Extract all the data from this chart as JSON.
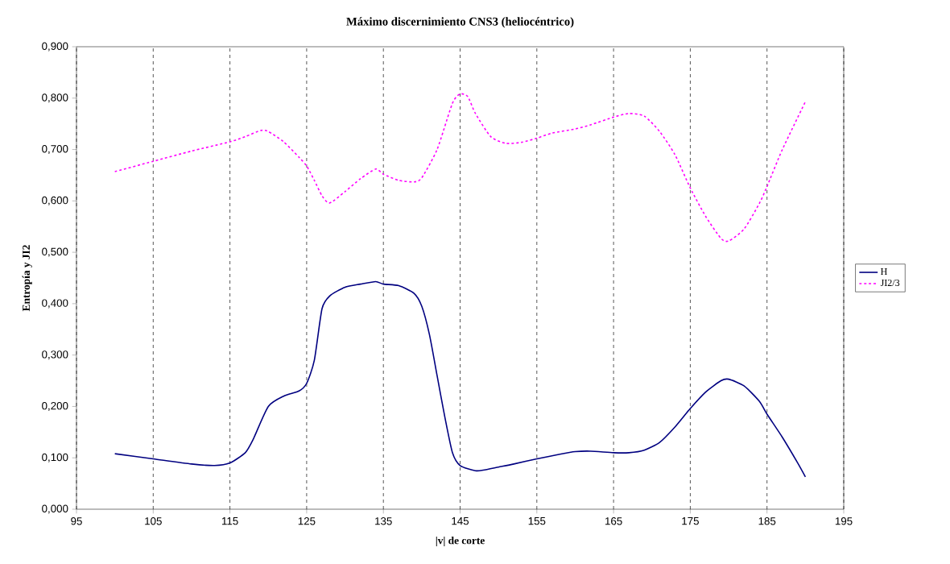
{
  "chart_data": {
    "type": "line",
    "title": "Máximo discernimiento CNS3 (heliocéntrico)",
    "xlabel": "|v| de corte",
    "ylabel": "Entropía y JI2",
    "xlim": [
      95,
      195
    ],
    "xticks": [
      95,
      105,
      115,
      125,
      135,
      145,
      155,
      165,
      175,
      185,
      195
    ],
    "ylim": [
      0,
      0.9
    ],
    "yticks": [
      {
        "value": 0,
        "label": "0,000"
      },
      {
        "value": 0.1,
        "label": "0,100"
      },
      {
        "value": 0.2,
        "label": "0,200"
      },
      {
        "value": 0.3,
        "label": "0,300"
      },
      {
        "value": 0.4,
        "label": "0,400"
      },
      {
        "value": 0.5,
        "label": "0,500"
      },
      {
        "value": 0.6,
        "label": "0,600"
      },
      {
        "value": 0.7,
        "label": "0,700"
      },
      {
        "value": 0.8,
        "label": "0,800"
      },
      {
        "value": 0.9,
        "label": "0,900"
      }
    ],
    "grid": "x",
    "legend": "right",
    "marker": "none",
    "series": [
      {
        "name": "H",
        "color": "#000080",
        "line_style": "solid",
        "x": [
          100,
          105,
          110,
          113,
          115,
          117,
          118,
          120,
          122,
          124,
          125,
          126,
          127,
          128,
          130,
          132,
          134,
          135,
          137,
          139,
          140,
          141,
          142,
          143,
          144,
          145,
          147,
          148,
          150,
          152,
          155,
          158,
          160,
          162,
          165,
          167,
          169,
          171,
          173,
          175,
          177,
          179,
          180,
          182,
          184,
          185,
          187,
          189,
          190
        ],
        "values": [
          0.108,
          0.098,
          0.088,
          0.085,
          0.09,
          0.11,
          0.135,
          0.2,
          0.22,
          0.23,
          0.245,
          0.29,
          0.39,
          0.415,
          0.432,
          0.438,
          0.443,
          0.438,
          0.435,
          0.42,
          0.395,
          0.34,
          0.26,
          0.18,
          0.11,
          0.085,
          0.075,
          0.076,
          0.082,
          0.088,
          0.098,
          0.107,
          0.112,
          0.113,
          0.11,
          0.11,
          0.115,
          0.13,
          0.16,
          0.196,
          0.228,
          0.25,
          0.253,
          0.24,
          0.21,
          0.185,
          0.14,
          0.09,
          0.063
        ]
      },
      {
        "name": "JI2/3",
        "color": "#ff00ff",
        "line_style": "dotted",
        "x": [
          100,
          105,
          110,
          115,
          117,
          119,
          120,
          122,
          124,
          125,
          126,
          127,
          128,
          130,
          132,
          134,
          135,
          137,
          139,
          140,
          142,
          144,
          145,
          146,
          147,
          149,
          151,
          153,
          155,
          157,
          160,
          162,
          165,
          167,
          169,
          171,
          173,
          175,
          177,
          179,
          180,
          182,
          184,
          185,
          187,
          190
        ],
        "values": [
          0.657,
          0.677,
          0.697,
          0.715,
          0.725,
          0.737,
          0.735,
          0.715,
          0.685,
          0.668,
          0.64,
          0.61,
          0.596,
          0.618,
          0.643,
          0.662,
          0.652,
          0.64,
          0.637,
          0.645,
          0.7,
          0.79,
          0.808,
          0.803,
          0.77,
          0.725,
          0.712,
          0.714,
          0.722,
          0.732,
          0.74,
          0.748,
          0.763,
          0.77,
          0.765,
          0.735,
          0.69,
          0.625,
          0.57,
          0.527,
          0.522,
          0.545,
          0.595,
          0.628,
          0.7,
          0.793
        ]
      }
    ]
  }
}
